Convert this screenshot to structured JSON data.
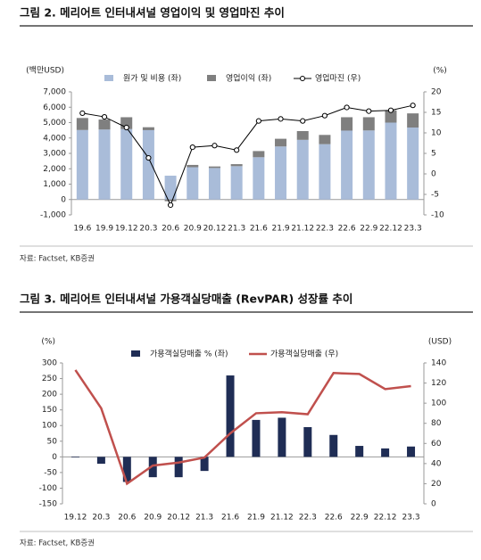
{
  "figure_titles": [
    "그림 2. 메리어트 인터내셔널 영업이익 및 영업마진 추이",
    "그림 3. 메리어트 인터내셔널 가용객실당매출 (RevPAR) 성장률 추이"
  ],
  "sources": [
    "자료: Factset, KB증권",
    "자료: Factset, KB증권"
  ],
  "chart_data": [
    {
      "type": "bar",
      "stacked": true,
      "y_label": "(백만USD)",
      "y2_label": "(%)",
      "categories": [
        "19.6",
        "19.9",
        "19.12",
        "20.3",
        "20.6",
        "20.9",
        "20.12",
        "21.3",
        "21.6",
        "21.9",
        "21.12",
        "22.3",
        "22.6",
        "22.9",
        "22.12",
        "23.3"
      ],
      "series": [
        {
          "name": "원가 및 비용 (좌)",
          "type": "bar",
          "color": "#a9bcd9",
          "values": [
            4520,
            4550,
            4580,
            4510,
            1550,
            2100,
            2050,
            2170,
            2750,
            3450,
            3880,
            3600,
            4480,
            4490,
            5000,
            4680
          ]
        },
        {
          "name": "영업이익 (좌)",
          "type": "bar",
          "color": "#7f7f7f",
          "values": [
            780,
            650,
            770,
            190,
            -110,
            150,
            100,
            130,
            400,
            500,
            570,
            600,
            870,
            860,
            800,
            920
          ]
        },
        {
          "name": "영업마진 (우)",
          "type": "line",
          "axis": "y2",
          "color": "#000000",
          "markers": true,
          "values": [
            14.8,
            13.9,
            11.3,
            3.9,
            -7.6,
            6.5,
            6.9,
            5.8,
            12.9,
            13.4,
            12.9,
            14.2,
            16.2,
            15.3,
            15.5,
            16.7
          ]
        }
      ],
      "ylim": [
        -1000,
        7000
      ],
      "yticks": [
        {
          "value": -1000,
          "label": "-1,000"
        },
        0,
        {
          "value": 1000,
          "label": "1,000"
        },
        {
          "value": 2000,
          "label": "2,000"
        },
        {
          "value": 3000,
          "label": "3,000"
        },
        {
          "value": 4000,
          "label": "4,000"
        },
        {
          "value": 5000,
          "label": "5,000"
        },
        {
          "value": 6000,
          "label": "6,000"
        },
        {
          "value": 7000,
          "label": "7,000"
        }
      ],
      "y2lim": [
        -10,
        20
      ],
      "y2ticks": [
        -10,
        -5,
        0,
        5,
        10,
        15,
        20
      ]
    },
    {
      "type": "bar",
      "y_label": "(%)",
      "y2_label": "(USD)",
      "categories": [
        "19.12",
        "20.3",
        "20.6",
        "20.9",
        "20.12",
        "21.3",
        "21.6",
        "21.9",
        "21.12",
        "22.3",
        "22.6",
        "22.9",
        "22.12",
        "23.3"
      ],
      "series": [
        {
          "name": "가용객실당매출 % (좌)",
          "type": "bar",
          "color": "#1f2d55",
          "values": [
            -2,
            -22,
            -80,
            -65,
            -65,
            -45,
            260,
            118,
            125,
            95,
            70,
            35,
            27,
            33
          ]
        },
        {
          "name": "가용객실당매출 (우)",
          "type": "line",
          "axis": "y2",
          "color": "#c0504d",
          "markers": false,
          "values": [
            133,
            95,
            20,
            38,
            41,
            46,
            70,
            90,
            91,
            89,
            130,
            129,
            114,
            117
          ]
        }
      ],
      "ylim": [
        -150,
        300
      ],
      "yticks": [
        -150,
        -100,
        -50,
        0,
        50,
        100,
        150,
        200,
        250,
        300
      ],
      "y2lim": [
        0,
        140
      ],
      "y2ticks": [
        0,
        20,
        40,
        60,
        80,
        100,
        120,
        140
      ]
    }
  ]
}
